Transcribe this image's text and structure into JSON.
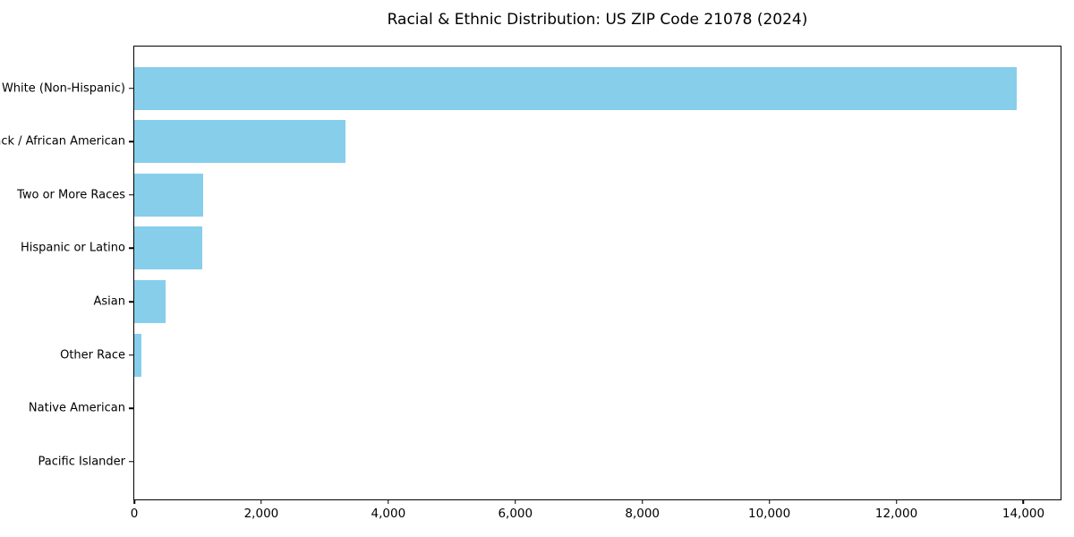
{
  "page": {
    "background_color": "#ffffff"
  },
  "chart_data": {
    "type": "bar",
    "orientation": "horizontal",
    "title": "Racial & Ethnic Distribution: US ZIP Code 21078 (2024)",
    "categories": [
      "White (Non-Hispanic)",
      "Black / African American",
      "Two or More Races",
      "Hispanic or Latino",
      "Asian",
      "Other Race",
      "Native American",
      "Pacific Islander"
    ],
    "values": [
      13890,
      3330,
      1085,
      1070,
      490,
      115,
      0,
      0
    ],
    "xlabel": "",
    "ylabel": "",
    "xlim": [
      0,
      14585
    ],
    "xticks": [
      0,
      2000,
      4000,
      6000,
      8000,
      10000,
      12000,
      14000
    ],
    "xtick_labels": [
      "0",
      "2,000",
      "4,000",
      "6,000",
      "8,000",
      "10,000",
      "12,000",
      "14,000"
    ],
    "grid": false,
    "legend": "none",
    "bar_color": "#87CEEB",
    "axis_color": "#000000",
    "text_color": "#000000"
  }
}
